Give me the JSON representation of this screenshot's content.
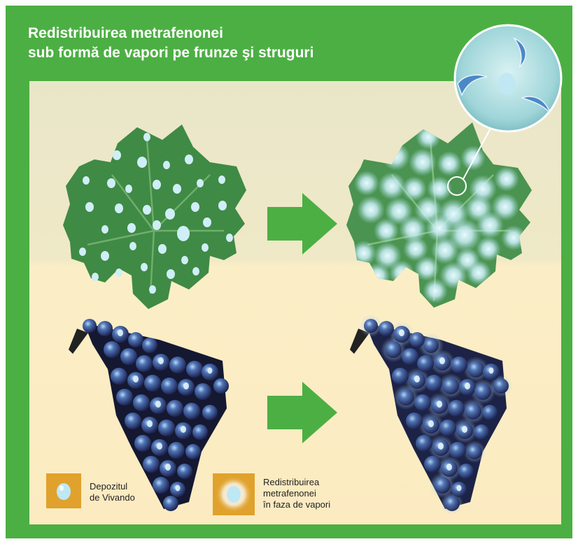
{
  "title": {
    "line1": "Redistribuirea metrafenonei",
    "line2": "sub formă de vapori pe frunze şi struguri"
  },
  "legend": {
    "item1": {
      "line1": "Depozitul",
      "line2": "de Vivando"
    },
    "item2": {
      "line1": "Redistribuirea",
      "line2": "metrafenonei",
      "line3": "în faza de vapori"
    }
  },
  "colors": {
    "background_green": "#4caf43",
    "arrow_green": "#4caf43",
    "leaf_green": "#3f8a45",
    "droplet_blue": "#bfe7f3",
    "grape_blue": "#3b5a9e",
    "legend_box": "#e0a22c"
  }
}
